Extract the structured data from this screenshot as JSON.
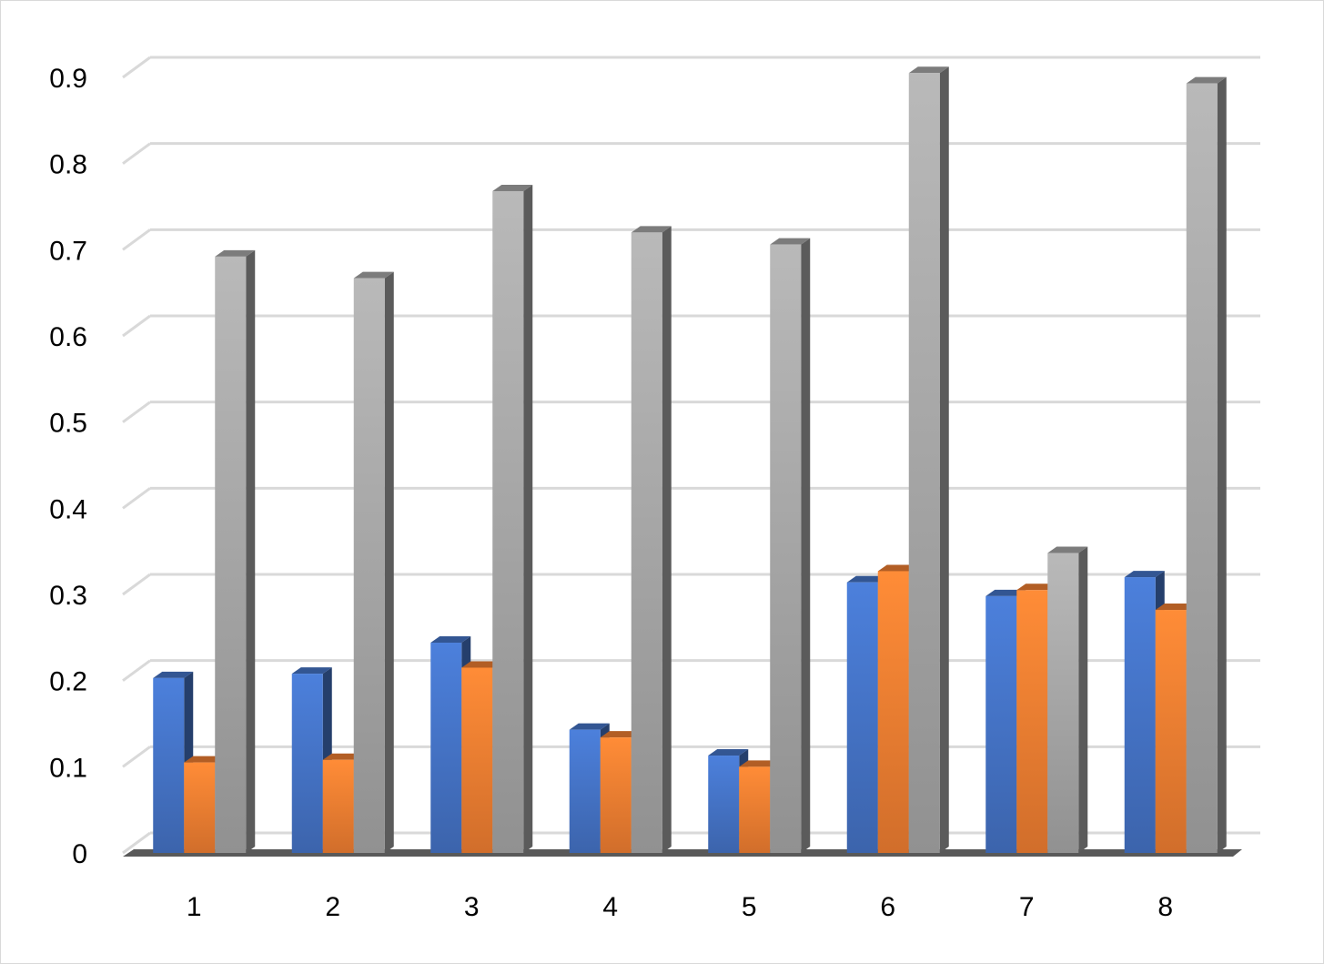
{
  "chart_data": {
    "type": "bar3d",
    "categories": [
      "1",
      "2",
      "3",
      "4",
      "5",
      "6",
      "7",
      "8"
    ],
    "series": [
      {
        "color": "#4472c4",
        "values": [
          0.203,
          0.208,
          0.244,
          0.143,
          0.113,
          0.314,
          0.298,
          0.32
        ]
      },
      {
        "color": "#ed7d31",
        "values": [
          0.105,
          0.108,
          0.215,
          0.134,
          0.1,
          0.327,
          0.305,
          0.282
        ]
      },
      {
        "color": "#a5a5a5",
        "values": [
          0.692,
          0.667,
          0.768,
          0.72,
          0.706,
          0.905,
          0.348,
          0.893
        ]
      }
    ],
    "ylim": [
      0,
      0.9
    ],
    "yticks": [
      0,
      0.1,
      0.2,
      0.3,
      0.4,
      0.5,
      0.6,
      0.7,
      0.8,
      0.9
    ],
    "grid": true
  }
}
